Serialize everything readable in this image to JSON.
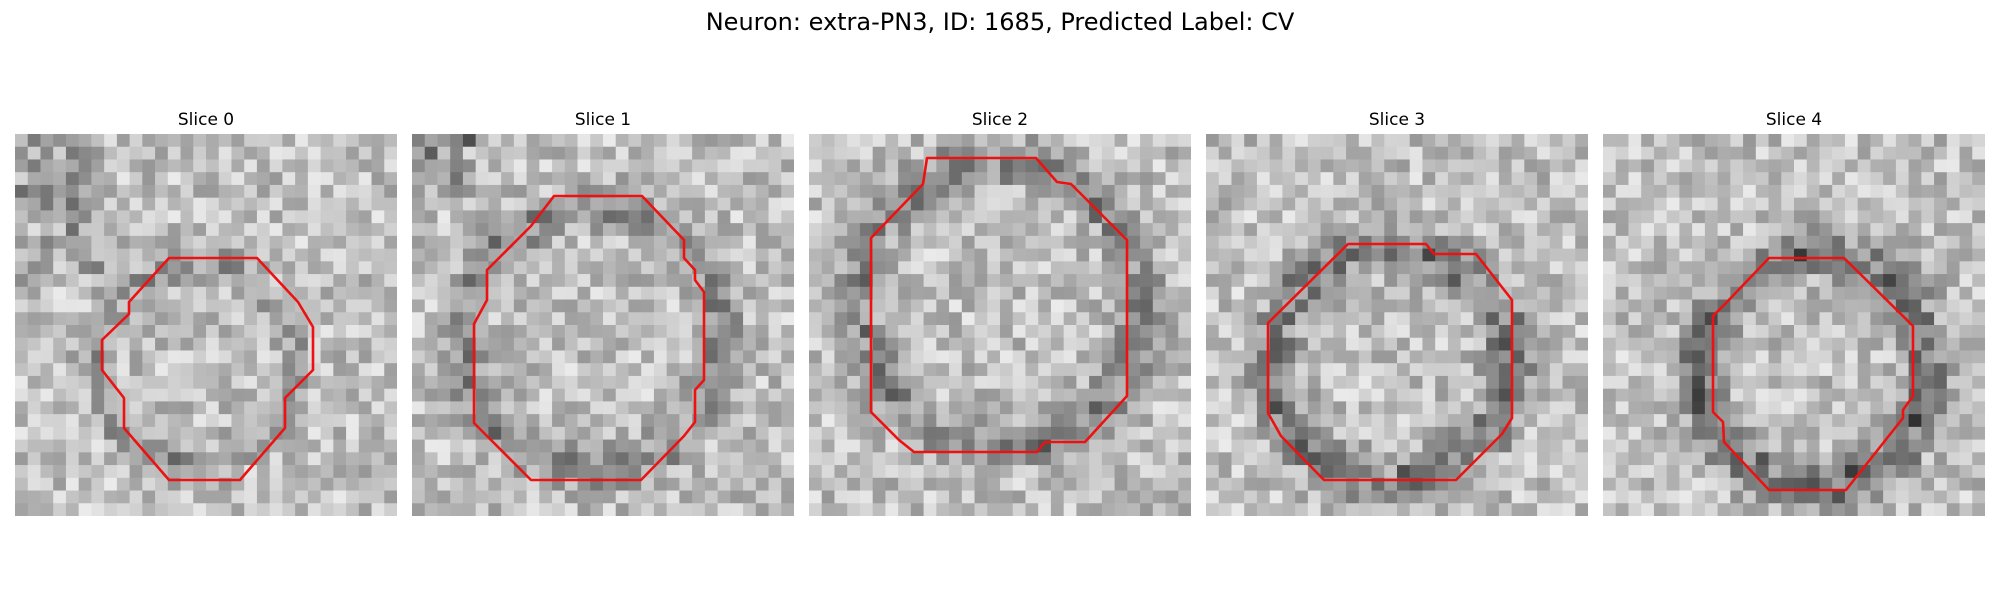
{
  "figure": {
    "title": "Neuron: extra-PN3, ID: 1685, Predicted Label: CV",
    "contour_color": "#ee1111"
  },
  "panels": [
    {
      "title": "Slice 0"
    },
    {
      "title": "Slice 1"
    },
    {
      "title": "Slice 2"
    },
    {
      "title": "Slice 3"
    },
    {
      "title": "Slice 4"
    }
  ]
}
